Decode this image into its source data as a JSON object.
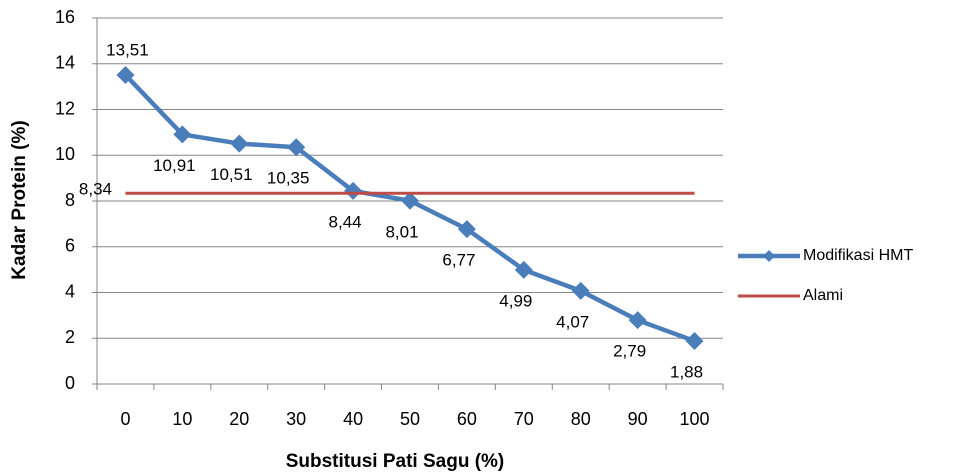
{
  "chart_data": {
    "type": "line",
    "x_label": "Substitusi Pati Sagu (%)",
    "y_label": "Kadar Protein (%)",
    "categories": [
      "0",
      "10",
      "20",
      "30",
      "40",
      "50",
      "60",
      "70",
      "80",
      "90",
      "100"
    ],
    "series": [
      {
        "name": "Modifikasi HMT",
        "color": "#4a7ebb",
        "values": [
          13.51,
          10.91,
          10.51,
          10.35,
          8.44,
          8.01,
          6.77,
          4.99,
          4.07,
          2.79,
          1.88
        ],
        "value_labels": [
          "13,51",
          "10,91",
          "10,51",
          "10,35",
          "8,44",
          "8,01",
          "6,77",
          "4,99",
          "4,07",
          "2,79",
          "1,88"
        ]
      },
      {
        "name": "Alami",
        "color": "#be4b48",
        "values": [
          8.34,
          8.34,
          8.34,
          8.34,
          8.34,
          8.34,
          8.34,
          8.34,
          8.34,
          8.34,
          8.34
        ],
        "value_labels": [
          "8,34",
          null,
          null,
          null,
          null,
          null,
          null,
          null,
          null,
          null,
          null
        ]
      }
    ],
    "ylim": [
      0,
      16
    ],
    "yticks": [
      0,
      2,
      4,
      6,
      8,
      10,
      12,
      14,
      16
    ],
    "grid": true,
    "legend": "right"
  }
}
